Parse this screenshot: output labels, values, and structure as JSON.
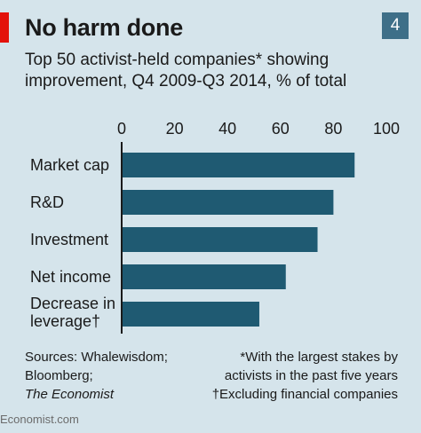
{
  "header": {
    "title": "No harm done",
    "chart_number": "4",
    "subtitle": "Top 50 activist-held companies* showing improvement, Q4 2009-Q3 2014, % of total"
  },
  "chart_data": {
    "type": "bar",
    "orientation": "horizontal",
    "categories": [
      "Market cap",
      "R&D",
      "Investment",
      "Net income",
      "Decrease in leverage†"
    ],
    "values": [
      88,
      80,
      74,
      62,
      52
    ],
    "xlim": [
      0,
      100
    ],
    "ticks": [
      0,
      20,
      40,
      60,
      80,
      100
    ],
    "axis_position": "top",
    "grid": false,
    "colors": {
      "bar": "#1f5a72"
    }
  },
  "footer": {
    "sources_line1": "Sources: Whalewisdom;",
    "sources_line2": "Bloomberg;",
    "sources_line3": "The Economist",
    "note1_line1": "*With the largest stakes by",
    "note1_line2": "activists in the past five years",
    "note2": "†Excluding financial companies",
    "brand": "Economist.com"
  }
}
